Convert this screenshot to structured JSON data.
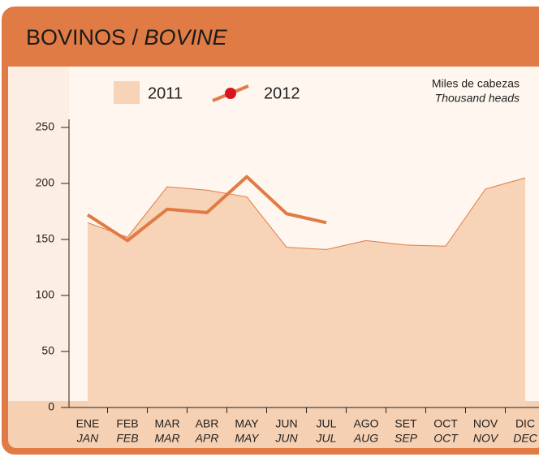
{
  "chart_data": {
    "type": "line",
    "title": "BOVINOS / ",
    "title_en": "BOVINE",
    "unit_label": "Miles de cabezas",
    "unit_label_en": "Thousand heads",
    "categories": [
      "ENE",
      "FEB",
      "MAR",
      "ABR",
      "MAY",
      "JUN",
      "JUL",
      "AGO",
      "SET",
      "OCT",
      "NOV",
      "DIC"
    ],
    "categories_en": [
      "JAN",
      "FEB",
      "MAR",
      "APR",
      "MAY",
      "JUN",
      "JUL",
      "AUG",
      "SEP",
      "OCT",
      "NOV",
      "DEC"
    ],
    "series": [
      {
        "name": "2011",
        "color": "#f7d3b8",
        "line_color": "#e07b45",
        "style": "area",
        "values": [
          165,
          152,
          197,
          194,
          188,
          143,
          141,
          149,
          145,
          144,
          195,
          205
        ]
      },
      {
        "name": "2012",
        "color": "#e07b45",
        "marker_color": "#d7141f",
        "style": "line",
        "values": [
          172,
          149,
          177,
          174,
          206,
          173,
          165,
          null,
          null,
          null,
          null,
          null
        ]
      }
    ],
    "ylim": [
      0,
      250
    ],
    "yticks": [
      0,
      50,
      100,
      150,
      200,
      250
    ]
  }
}
